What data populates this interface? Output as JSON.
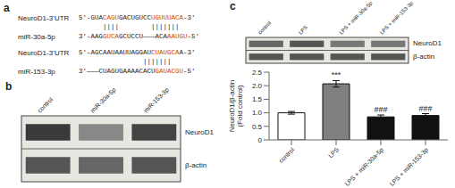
{
  "chart_data": [
    {
      "type": "alignment",
      "title": "a",
      "annotations": [
        {
          "label": "NeuroD1-3’UTR",
          "segments": [
            {
              "text": "5'-GUA"
            },
            {
              "text": "CAGU",
              "color": "#cc4400"
            },
            {
              "text": "GACUGUCC"
            },
            {
              "text": "UGUUUACA",
              "color": "#cc4400"
            },
            {
              "text": "-3'"
            }
          ]
        },
        {
          "segments": [
            {
              "text": "      ||||        |||||||"
            }
          ]
        },
        {
          "label": "miR-30a-5p",
          "segments": [
            {
              "text": "3'-AAG"
            },
            {
              "text": "GUCA",
              "color": "#cc4400"
            },
            {
              "text": "GCUCCU———ACA"
            },
            {
              "text": "AAUGU",
              "color": "#cc4400"
            },
            {
              "text": "-5'"
            }
          ]
        },
        {
          "label": "NeuroD1-3’UTR",
          "segments": [
            {
              "text": "5'-AGCAAUAAUUAGGAU"
            },
            {
              "text": "CUAUGCA",
              "color": "#cc4400"
            },
            {
              "text": "A-3'"
            }
          ]
        },
        {
          "segments": [
            {
              "text": "                |||||||"
            }
          ]
        },
        {
          "label": "miR-153-3p",
          "segments": [
            {
              "text": "3'———CUAGUGAAAACACU"
            },
            {
              "text": "GAUACGU",
              "color": "#cc4400"
            },
            {
              "text": "-5'"
            }
          ]
        }
      ]
    },
    {
      "type": "blot",
      "title": "b",
      "categories": [
        "control",
        "miR-30a-5p",
        "miR-153-3p"
      ],
      "color": "#e8e6e0",
      "series": [
        {
          "name": "NeuroD1",
          "colors": [
            "#3a3a3a",
            "#888888",
            "#444444"
          ]
        },
        {
          "name": "β-actin",
          "colors": [
            "#555555",
            "#666666",
            "#555555"
          ]
        }
      ]
    },
    {
      "type": "blot",
      "title": "c",
      "categories": [
        "control",
        "LPS",
        "LPS + miR-30a-5p",
        "LPS + miR-153-3p"
      ],
      "color": "#e8e6e0",
      "series": [
        {
          "name": "NeuroD1",
          "colors": [
            "#666666",
            "#555555",
            "#777777",
            "#777777"
          ]
        },
        {
          "name": "β-actin",
          "colors": [
            "#555555",
            "#555555",
            "#555555",
            "#555555"
          ]
        }
      ]
    },
    {
      "type": "bar",
      "categories": [
        "control",
        "LPS",
        "LPS + miR-30a-5p",
        "LPS + miR-153-3p"
      ],
      "values": [
        1.0,
        2.07,
        0.85,
        0.9
      ],
      "errors": [
        0.05,
        0.12,
        0.07,
        0.07
      ],
      "colors": [
        "white",
        "#808080",
        "#111111",
        "#111111"
      ],
      "ylabel": "NeuroD1/β-actin\n(Fold control)",
      "ylim": [
        0,
        2.5
      ],
      "yticks": [
        0,
        0.5,
        {
          "value": 1.0,
          "label": "1.0"
        },
        1.5,
        {
          "value": 2.0,
          "label": "2.0"
        },
        2.5
      ],
      "annotations": [
        {
          "category": "LPS",
          "text": "***"
        },
        {
          "category": "LPS + miR-30a-5p",
          "text": "###"
        },
        {
          "category": "LPS + miR-153-3p",
          "text": "###"
        }
      ]
    }
  ]
}
